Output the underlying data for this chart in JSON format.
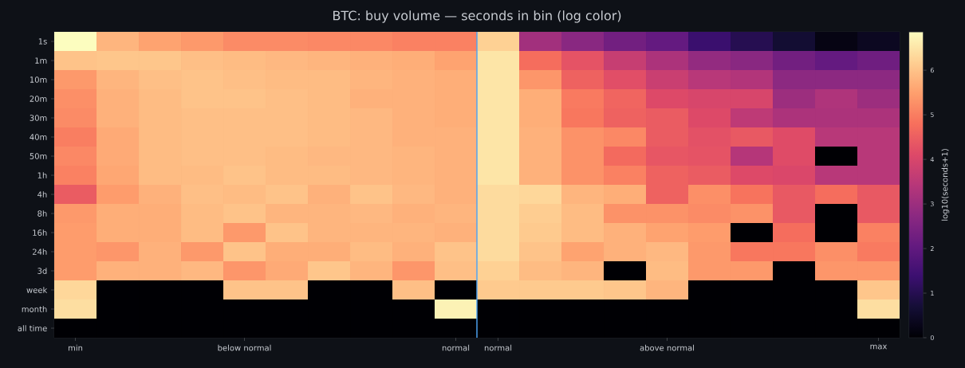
{
  "chart_data": {
    "type": "heatmap",
    "title": "BTC: buy volume — seconds in bin (log color)",
    "clabel": "log10(seconds+1)",
    "categories": [
      "min",
      null,
      null,
      null,
      "below normal",
      null,
      null,
      null,
      null,
      "normal",
      "normal",
      null,
      null,
      null,
      "above normal",
      null,
      null,
      null,
      null,
      "max"
    ],
    "y_categories": [
      "1s",
      "1m",
      "10m",
      "20m",
      "30m",
      "40m",
      "50m",
      "1h",
      "4h",
      "8h",
      "16h",
      "24h",
      "3d",
      "week",
      "month",
      "all time"
    ],
    "cells": [
      [
        6.86,
        5.8,
        5.55,
        5.4,
        5.2,
        5.2,
        5.15,
        5.15,
        5.05,
        5.05,
        6.2,
        3.1,
        2.7,
        2.3,
        2.05,
        1.35,
        1.0,
        0.65,
        0.2,
        0.4
      ],
      [
        6.0,
        6.05,
        6.05,
        5.95,
        5.9,
        5.85,
        5.8,
        5.75,
        5.7,
        5.55,
        6.5,
        4.75,
        4.3,
        3.7,
        3.25,
        2.85,
        2.7,
        2.3,
        2.05,
        2.25
      ],
      [
        5.4,
        5.8,
        5.95,
        6.0,
        5.95,
        5.9,
        5.9,
        5.8,
        5.75,
        5.7,
        6.5,
        5.35,
        4.55,
        4.2,
        3.75,
        3.45,
        3.35,
        2.75,
        2.75,
        2.75
      ],
      [
        5.25,
        5.75,
        5.9,
        6.0,
        6.0,
        5.95,
        5.9,
        5.75,
        5.75,
        5.7,
        6.5,
        5.7,
        4.95,
        4.6,
        4.1,
        4.0,
        4.0,
        3.0,
        3.3,
        3.0
      ],
      [
        5.2,
        5.75,
        5.9,
        5.95,
        5.95,
        5.95,
        5.9,
        5.85,
        5.75,
        5.7,
        6.5,
        5.7,
        4.9,
        4.55,
        4.45,
        4.1,
        3.55,
        3.25,
        3.25,
        3.25
      ],
      [
        5.0,
        5.65,
        5.9,
        5.95,
        5.95,
        5.95,
        5.9,
        5.85,
        5.75,
        5.75,
        6.5,
        5.75,
        5.3,
        5.15,
        4.45,
        4.25,
        4.4,
        4.15,
        3.45,
        3.45
      ],
      [
        5.15,
        5.65,
        5.9,
        5.95,
        5.95,
        5.9,
        5.85,
        5.85,
        5.8,
        5.75,
        6.5,
        5.75,
        5.3,
        4.7,
        4.35,
        4.3,
        3.4,
        4.15,
        0,
        3.45
      ],
      [
        5.05,
        5.6,
        5.9,
        5.9,
        6.0,
        5.9,
        5.9,
        5.85,
        5.8,
        5.75,
        6.5,
        5.75,
        5.3,
        5.05,
        4.55,
        4.45,
        4.1,
        4.05,
        3.45,
        3.45
      ],
      [
        4.45,
        5.45,
        5.75,
        5.95,
        5.9,
        6.0,
        5.75,
        6.0,
        5.85,
        5.75,
        6.35,
        6.3,
        5.8,
        5.7,
        4.55,
        5.25,
        4.85,
        4.4,
        4.75,
        4.4
      ],
      [
        5.4,
        5.7,
        5.7,
        5.9,
        6.0,
        5.8,
        5.8,
        5.85,
        5.75,
        5.8,
        6.35,
        6.15,
        5.9,
        5.3,
        5.3,
        5.2,
        5.3,
        4.4,
        0,
        4.4
      ],
      [
        5.45,
        5.7,
        5.7,
        5.9,
        5.4,
        6.0,
        5.8,
        5.8,
        5.8,
        5.75,
        6.35,
        6.1,
        5.9,
        5.75,
        5.55,
        5.45,
        0,
        4.75,
        0,
        5.05
      ],
      [
        5.45,
        5.35,
        5.75,
        5.4,
        6.0,
        5.7,
        5.7,
        5.9,
        5.75,
        6.0,
        6.35,
        6.0,
        5.55,
        5.75,
        5.85,
        5.4,
        4.9,
        4.9,
        5.25,
        4.95
      ],
      [
        5.45,
        5.75,
        5.75,
        5.85,
        5.35,
        5.65,
        6.05,
        5.8,
        5.35,
        5.95,
        6.2,
        5.9,
        5.8,
        0,
        5.9,
        5.4,
        5.4,
        0,
        5.35,
        5.35
      ],
      [
        6.3,
        0,
        0,
        0,
        6.0,
        6.0,
        0,
        0,
        5.95,
        0,
        6.1,
        6.1,
        6.1,
        6.05,
        5.8,
        0,
        0,
        0,
        0,
        6.05
      ],
      [
        6.4,
        0,
        0,
        0,
        0,
        0,
        0,
        0,
        0,
        6.7,
        0,
        0,
        0,
        0,
        0,
        0,
        0,
        0,
        0,
        6.4
      ],
      [
        0,
        0,
        0,
        0,
        0,
        0,
        0,
        0,
        0,
        0,
        0,
        0,
        0,
        0,
        0,
        0,
        0,
        0,
        0,
        0
      ]
    ],
    "clim": [
      0,
      6.86
    ],
    "cticks": [
      0,
      1,
      2,
      3,
      4,
      5,
      6
    ]
  }
}
